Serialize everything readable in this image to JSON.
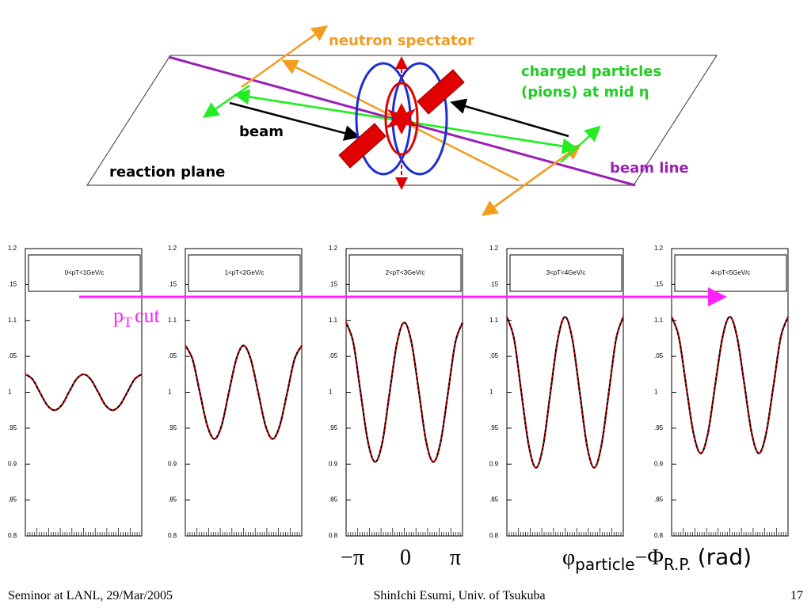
{
  "diagram": {
    "neutron": "neutron spectator",
    "charged_1": "charged particles",
    "charged_2": "(pions) at mid η",
    "beam": "beam",
    "reaction_plane": "reaction plane",
    "beam_line": "beam line",
    "cut_p": "p",
    "cut_sub": "T",
    "cut_word": "cut"
  },
  "axis_note": {
    "minus_pi": "−π",
    "zero": "0",
    "pi": "π",
    "phi": "φ",
    "phi_sub": "particle",
    "minus": "−",
    "Phi": "Φ",
    "Phi_sub": "R.P.",
    "unit": "(rad)"
  },
  "footer": {
    "left": "Seminor at LANL, 29/Mar/2005",
    "center": "ShinIchi Esumi, Univ. of Tsukuba",
    "page": "17"
  },
  "chart_data": [
    {
      "type": "line",
      "title": "0<pT<1GeV/c",
      "color": "#e00000",
      "x": [
        -3.14,
        -2.75,
        -2.36,
        -1.96,
        -1.57,
        -1.18,
        -0.79,
        -0.39,
        0,
        0.39,
        0.79,
        1.18,
        1.57,
        1.96,
        2.36,
        2.75,
        3.14
      ],
      "values": [
        1.025,
        1.018,
        1,
        0.982,
        0.975,
        0.982,
        1,
        1.018,
        1.025,
        1.018,
        1,
        0.982,
        0.975,
        0.982,
        1,
        1.018,
        1.025
      ],
      "xlim": [
        -3.14,
        3.14
      ],
      "ylim": [
        0.8,
        1.2
      ],
      "yticks": [
        {
          "value": 1.2,
          "label": "1.2"
        },
        {
          "value": 1.15,
          "label": ".15"
        },
        {
          "value": 1.1,
          "label": "1.1"
        },
        {
          "value": 1.05,
          "label": ".05"
        },
        1,
        {
          "value": 0.95,
          "label": ".95"
        },
        {
          "value": 0.9,
          "label": "0.9"
        },
        {
          "value": 0.85,
          "label": ".85"
        },
        {
          "value": 0.8,
          "label": "0.8"
        }
      ]
    },
    {
      "type": "line",
      "title": "1<pT<2GeV/c",
      "color": "#e00000",
      "x": [
        -3.14,
        -2.75,
        -2.36,
        -1.96,
        -1.57,
        -1.18,
        -0.79,
        -0.39,
        0,
        0.39,
        0.79,
        1.18,
        1.57,
        1.96,
        2.36,
        2.75,
        3.14
      ],
      "values": [
        1.065,
        1.046,
        1,
        0.954,
        0.935,
        0.954,
        1,
        1.046,
        1.065,
        1.046,
        1,
        0.954,
        0.935,
        0.954,
        1,
        1.046,
        1.065
      ],
      "xlim": [
        -3.14,
        3.14
      ],
      "ylim": [
        0.8,
        1.2
      ],
      "yticks": [
        {
          "value": 1.2,
          "label": "1.2"
        },
        {
          "value": 1.15,
          "label": ".15"
        },
        {
          "value": 1.1,
          "label": "1.1"
        },
        {
          "value": 1.05,
          "label": ".05"
        },
        1,
        {
          "value": 0.95,
          "label": ".95"
        },
        {
          "value": 0.9,
          "label": "0.9"
        },
        {
          "value": 0.85,
          "label": ".85"
        },
        {
          "value": 0.8,
          "label": "0.8"
        }
      ]
    },
    {
      "type": "line",
      "title": "2<pT<3GeV/c",
      "color": "#e00000",
      "x": [
        -3.14,
        -2.75,
        -2.36,
        -1.96,
        -1.57,
        -1.18,
        -0.79,
        -0.39,
        0,
        0.39,
        0.79,
        1.18,
        1.57,
        1.96,
        2.36,
        2.75,
        3.14
      ],
      "values": [
        1.097,
        1.069,
        1,
        0.931,
        0.903,
        0.931,
        1,
        1.069,
        1.097,
        1.069,
        1,
        0.931,
        0.903,
        0.931,
        1,
        1.069,
        1.097
      ],
      "xlim": [
        -3.14,
        3.14
      ],
      "ylim": [
        0.8,
        1.2
      ],
      "yticks": [
        {
          "value": 1.2,
          "label": "1.2"
        },
        {
          "value": 1.15,
          "label": ".15"
        },
        {
          "value": 1.1,
          "label": "1.1"
        },
        {
          "value": 1.05,
          "label": ".05"
        },
        1,
        {
          "value": 0.95,
          "label": ".95"
        },
        {
          "value": 0.9,
          "label": "0.9"
        },
        {
          "value": 0.85,
          "label": ".85"
        },
        {
          "value": 0.8,
          "label": "0.8"
        }
      ]
    },
    {
      "type": "line",
      "title": "3<pT<4GeV/c",
      "color": "#e00000",
      "x": [
        -3.14,
        -2.75,
        -2.36,
        -1.96,
        -1.57,
        -1.18,
        -0.79,
        -0.39,
        0,
        0.39,
        0.79,
        1.18,
        1.57,
        1.96,
        2.36,
        2.75,
        3.14
      ],
      "values": [
        1.105,
        1.074,
        1,
        0.926,
        0.895,
        0.926,
        1,
        1.074,
        1.105,
        1.074,
        1,
        0.926,
        0.895,
        0.926,
        1,
        1.074,
        1.105
      ],
      "xlim": [
        -3.14,
        3.14
      ],
      "ylim": [
        0.8,
        1.2
      ],
      "yticks": [
        {
          "value": 1.2,
          "label": "1.2"
        },
        {
          "value": 1.15,
          "label": ".15"
        },
        {
          "value": 1.1,
          "label": "1.1"
        },
        {
          "value": 1.05,
          "label": ".05"
        },
        1,
        {
          "value": 0.95,
          "label": ".95"
        },
        {
          "value": 0.9,
          "label": "0.9"
        },
        {
          "value": 0.85,
          "label": ".85"
        },
        {
          "value": 0.8,
          "label": "0.8"
        }
      ]
    },
    {
      "type": "line",
      "title": "4<pT<5GeV/c",
      "color": "#e00000",
      "x": [
        -3.14,
        -2.75,
        -2.36,
        -1.96,
        -1.57,
        -1.18,
        -0.79,
        -0.39,
        0,
        0.39,
        0.79,
        1.18,
        1.57,
        1.96,
        2.36,
        2.75,
        3.14
      ],
      "values": [
        1.105,
        1.077,
        1.01,
        0.943,
        0.915,
        0.943,
        1.01,
        1.077,
        1.105,
        1.077,
        1.01,
        0.943,
        0.915,
        0.943,
        1.01,
        1.077,
        1.105
      ],
      "xlim": [
        -3.14,
        3.14
      ],
      "ylim": [
        0.8,
        1.2
      ],
      "yticks": [
        {
          "value": 1.2,
          "label": "1.2"
        },
        {
          "value": 1.15,
          "label": ".15"
        },
        {
          "value": 1.1,
          "label": "1.1"
        },
        {
          "value": 1.05,
          "label": ".05"
        },
        1,
        {
          "value": 0.95,
          "label": ".95"
        },
        {
          "value": 0.9,
          "label": "0.9"
        },
        {
          "value": 0.85,
          "label": ".85"
        },
        {
          "value": 0.8,
          "label": "0.8"
        }
      ]
    }
  ]
}
